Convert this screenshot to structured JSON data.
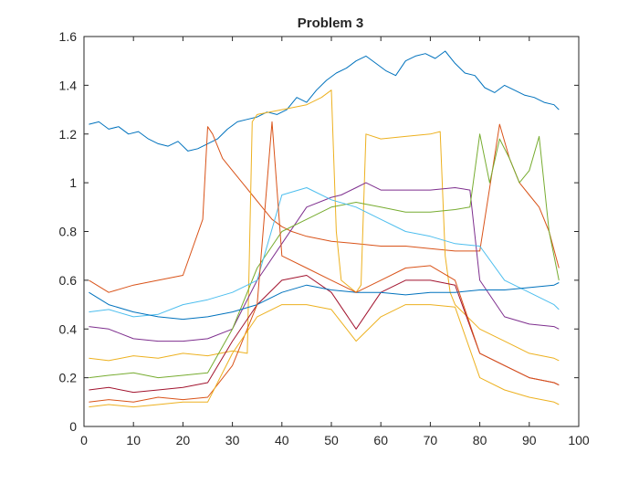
{
  "chart_data": {
    "type": "line",
    "title": "Problem 3",
    "xlabel": "",
    "ylabel": "",
    "xlim": [
      0,
      100
    ],
    "ylim": [
      0,
      1.6
    ],
    "xticks": [
      0,
      10,
      20,
      30,
      40,
      50,
      60,
      70,
      80,
      90,
      100
    ],
    "xtick_labels": [
      "0",
      "10",
      "20",
      "30",
      "40",
      "50",
      "60",
      "70",
      "80",
      "90",
      "100"
    ],
    "yticks": [
      0,
      0.2,
      0.4,
      0.6,
      0.8,
      1.0,
      1.2,
      1.4,
      1.6
    ],
    "ytick_labels": [
      "0",
      "0.2",
      "0.4",
      "0.6",
      "0.8",
      "1",
      "1.2",
      "1.4",
      "1.6"
    ],
    "grid": false,
    "legend": "none",
    "colors": [
      "#0072BD",
      "#D95319",
      "#EDB120",
      "#7E2F8E",
      "#77AC30",
      "#4DBEEE",
      "#A2142F"
    ],
    "series": [
      {
        "x": [
          1,
          3,
          5,
          7,
          9,
          11,
          13,
          15,
          17,
          19,
          21,
          23,
          25,
          27,
          29,
          31,
          33,
          35,
          37,
          39,
          41,
          43,
          45,
          47,
          49,
          51,
          53,
          55,
          57,
          59,
          61,
          63,
          65,
          67,
          69,
          71,
          73,
          75,
          77,
          79,
          81,
          83,
          85,
          87,
          89,
          91,
          93,
          95,
          96
        ],
        "values": [
          1.24,
          1.25,
          1.22,
          1.23,
          1.2,
          1.21,
          1.18,
          1.16,
          1.15,
          1.17,
          1.13,
          1.14,
          1.16,
          1.18,
          1.22,
          1.25,
          1.26,
          1.27,
          1.29,
          1.28,
          1.3,
          1.35,
          1.33,
          1.38,
          1.42,
          1.45,
          1.47,
          1.5,
          1.52,
          1.49,
          1.46,
          1.44,
          1.5,
          1.52,
          1.53,
          1.51,
          1.54,
          1.49,
          1.45,
          1.44,
          1.39,
          1.37,
          1.4,
          1.38,
          1.36,
          1.35,
          1.33,
          1.32,
          1.3
        ]
      },
      {
        "x": [
          1,
          5,
          10,
          15,
          20,
          24,
          25,
          26,
          28,
          30,
          32,
          34,
          36,
          38,
          40,
          42,
          45,
          50,
          55,
          60,
          65,
          70,
          75,
          80,
          84,
          86,
          88,
          90,
          92,
          94,
          96
        ],
        "values": [
          0.6,
          0.55,
          0.58,
          0.6,
          0.62,
          0.85,
          1.23,
          1.2,
          1.1,
          1.05,
          1.0,
          0.95,
          0.9,
          0.85,
          0.82,
          0.8,
          0.78,
          0.76,
          0.75,
          0.74,
          0.74,
          0.73,
          0.72,
          0.72,
          1.24,
          1.1,
          1.0,
          0.95,
          0.9,
          0.8,
          0.65
        ]
      },
      {
        "x": [
          1,
          5,
          10,
          15,
          20,
          25,
          30,
          33,
          34,
          35,
          40,
          45,
          48,
          50,
          51,
          52,
          55,
          56,
          57,
          60,
          65,
          70,
          72,
          73,
          74,
          75,
          80,
          85,
          90,
          95,
          96
        ],
        "values": [
          0.28,
          0.27,
          0.29,
          0.28,
          0.3,
          0.29,
          0.31,
          0.3,
          1.25,
          1.28,
          1.3,
          1.32,
          1.35,
          1.38,
          0.8,
          0.6,
          0.55,
          0.58,
          1.2,
          1.18,
          1.19,
          1.2,
          1.21,
          0.7,
          0.55,
          0.5,
          0.4,
          0.35,
          0.3,
          0.28,
          0.27
        ]
      },
      {
        "x": [
          1,
          5,
          10,
          15,
          20,
          25,
          30,
          35,
          40,
          45,
          50,
          52,
          55,
          57,
          60,
          65,
          70,
          75,
          78,
          80,
          85,
          90,
          95,
          96
        ],
        "values": [
          0.41,
          0.4,
          0.36,
          0.35,
          0.35,
          0.36,
          0.4,
          0.6,
          0.75,
          0.9,
          0.94,
          0.95,
          0.98,
          1.0,
          0.97,
          0.97,
          0.97,
          0.98,
          0.97,
          0.6,
          0.45,
          0.42,
          0.41,
          0.4
        ]
      },
      {
        "x": [
          1,
          5,
          10,
          15,
          20,
          25,
          30,
          35,
          40,
          45,
          50,
          55,
          60,
          65,
          70,
          75,
          78,
          80,
          82,
          84,
          86,
          88,
          90,
          92,
          94,
          96
        ],
        "values": [
          0.2,
          0.21,
          0.22,
          0.2,
          0.21,
          0.22,
          0.4,
          0.65,
          0.8,
          0.85,
          0.9,
          0.92,
          0.9,
          0.88,
          0.88,
          0.89,
          0.9,
          1.2,
          1.0,
          1.18,
          1.1,
          1.0,
          1.05,
          1.19,
          0.8,
          0.6
        ]
      },
      {
        "x": [
          1,
          5,
          10,
          15,
          20,
          25,
          30,
          35,
          40,
          45,
          50,
          55,
          60,
          65,
          70,
          75,
          80,
          85,
          90,
          95,
          96
        ],
        "values": [
          0.47,
          0.48,
          0.45,
          0.46,
          0.5,
          0.52,
          0.55,
          0.6,
          0.95,
          0.98,
          0.93,
          0.9,
          0.85,
          0.8,
          0.78,
          0.75,
          0.74,
          0.6,
          0.55,
          0.5,
          0.48
        ]
      },
      {
        "x": [
          1,
          5,
          10,
          15,
          20,
          25,
          30,
          35,
          40,
          45,
          50,
          55,
          60,
          65,
          70,
          75,
          80,
          85,
          90,
          95,
          96
        ],
        "values": [
          0.15,
          0.16,
          0.14,
          0.15,
          0.16,
          0.18,
          0.35,
          0.5,
          0.6,
          0.62,
          0.55,
          0.4,
          0.55,
          0.6,
          0.6,
          0.58,
          0.3,
          0.25,
          0.2,
          0.18,
          0.17
        ]
      },
      {
        "x": [
          1,
          5,
          10,
          15,
          20,
          25,
          30,
          35,
          40,
          45,
          50,
          55,
          60,
          65,
          70,
          75,
          80,
          85,
          90,
          95,
          96
        ],
        "values": [
          0.55,
          0.5,
          0.47,
          0.45,
          0.44,
          0.45,
          0.47,
          0.5,
          0.55,
          0.58,
          0.56,
          0.55,
          0.55,
          0.54,
          0.55,
          0.55,
          0.56,
          0.56,
          0.57,
          0.58,
          0.59
        ]
      },
      {
        "x": [
          1,
          5,
          10,
          15,
          20,
          25,
          30,
          35,
          38,
          40,
          45,
          50,
          55,
          60,
          65,
          70,
          75,
          80,
          85,
          90,
          95,
          96
        ],
        "values": [
          0.1,
          0.11,
          0.1,
          0.12,
          0.11,
          0.12,
          0.25,
          0.5,
          1.25,
          0.7,
          0.65,
          0.6,
          0.55,
          0.6,
          0.65,
          0.66,
          0.6,
          0.3,
          0.25,
          0.2,
          0.18,
          0.17
        ]
      },
      {
        "x": [
          1,
          5,
          10,
          15,
          20,
          25,
          30,
          35,
          40,
          45,
          50,
          55,
          60,
          65,
          70,
          75,
          80,
          85,
          90,
          95,
          96
        ],
        "values": [
          0.08,
          0.09,
          0.08,
          0.09,
          0.1,
          0.1,
          0.3,
          0.45,
          0.5,
          0.5,
          0.48,
          0.35,
          0.45,
          0.5,
          0.5,
          0.49,
          0.2,
          0.15,
          0.12,
          0.1,
          0.09
        ]
      }
    ]
  }
}
